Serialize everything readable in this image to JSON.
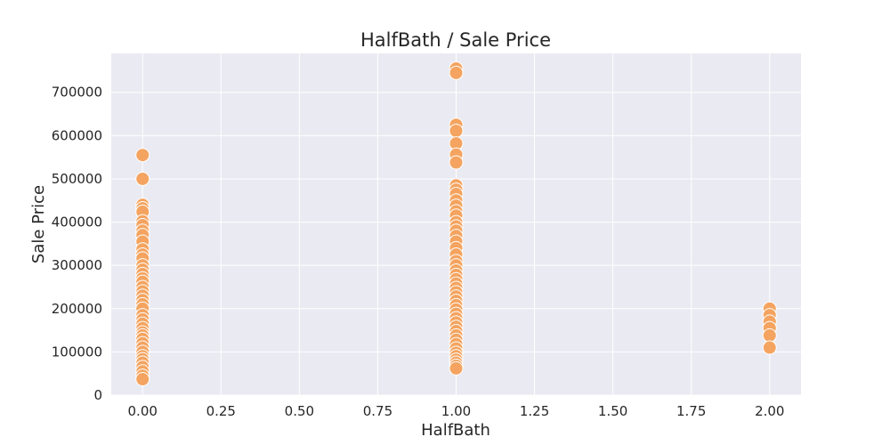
{
  "chart_data": {
    "type": "scatter",
    "title": "HalfBath / Sale Price",
    "xlabel": "HalfBath",
    "ylabel": "Sale Price",
    "xlim": [
      -0.1,
      2.1
    ],
    "ylim": [
      0,
      790000
    ],
    "xticks": [
      0.0,
      0.25,
      0.5,
      0.75,
      1.0,
      1.25,
      1.5,
      1.75,
      2.0
    ],
    "xtick_labels": [
      "0.00",
      "0.25",
      "0.50",
      "0.75",
      "1.00",
      "1.25",
      "1.50",
      "1.75",
      "2.00"
    ],
    "yticks": [
      0,
      100000,
      200000,
      300000,
      400000,
      500000,
      600000,
      700000
    ],
    "ytick_labels": [
      "0",
      "100000",
      "200000",
      "300000",
      "400000",
      "500000",
      "600000",
      "700000"
    ],
    "grid": true,
    "background": "#eaeaf2",
    "grid_color": "#ffffff",
    "marker_color": "#f4a460",
    "marker_edge_color": "#ffffff",
    "points": [
      {
        "x": 0,
        "y": 555000
      },
      {
        "x": 0,
        "y": 500000
      },
      {
        "x": 0,
        "y": 440000
      },
      {
        "x": 0,
        "y": 432000
      },
      {
        "x": 0,
        "y": 424000
      },
      {
        "x": 0,
        "y": 402000
      },
      {
        "x": 0,
        "y": 393000
      },
      {
        "x": 0,
        "y": 380000
      },
      {
        "x": 0,
        "y": 370000
      },
      {
        "x": 0,
        "y": 355000
      },
      {
        "x": 0,
        "y": 337000
      },
      {
        "x": 0,
        "y": 325000
      },
      {
        "x": 0,
        "y": 316000
      },
      {
        "x": 0,
        "y": 300000
      },
      {
        "x": 0,
        "y": 290000
      },
      {
        "x": 0,
        "y": 280000
      },
      {
        "x": 0,
        "y": 270000
      },
      {
        "x": 0,
        "y": 262000
      },
      {
        "x": 0,
        "y": 250000
      },
      {
        "x": 0,
        "y": 240000
      },
      {
        "x": 0,
        "y": 230000
      },
      {
        "x": 0,
        "y": 220000
      },
      {
        "x": 0,
        "y": 210000
      },
      {
        "x": 0,
        "y": 200000
      },
      {
        "x": 0,
        "y": 185000
      },
      {
        "x": 0,
        "y": 175000
      },
      {
        "x": 0,
        "y": 165000
      },
      {
        "x": 0,
        "y": 155000
      },
      {
        "x": 0,
        "y": 145000
      },
      {
        "x": 0,
        "y": 138000
      },
      {
        "x": 0,
        "y": 130000
      },
      {
        "x": 0,
        "y": 120000
      },
      {
        "x": 0,
        "y": 110000
      },
      {
        "x": 0,
        "y": 100000
      },
      {
        "x": 0,
        "y": 90000
      },
      {
        "x": 0,
        "y": 83000
      },
      {
        "x": 0,
        "y": 75000
      },
      {
        "x": 0,
        "y": 65000
      },
      {
        "x": 0,
        "y": 55000
      },
      {
        "x": 0,
        "y": 45000
      },
      {
        "x": 0,
        "y": 37000
      },
      {
        "x": 1,
        "y": 755000
      },
      {
        "x": 1,
        "y": 745000
      },
      {
        "x": 1,
        "y": 625000
      },
      {
        "x": 1,
        "y": 611000
      },
      {
        "x": 1,
        "y": 582000
      },
      {
        "x": 1,
        "y": 556000
      },
      {
        "x": 1,
        "y": 538000
      },
      {
        "x": 1,
        "y": 485000
      },
      {
        "x": 1,
        "y": 475000
      },
      {
        "x": 1,
        "y": 465000
      },
      {
        "x": 1,
        "y": 450000
      },
      {
        "x": 1,
        "y": 438000
      },
      {
        "x": 1,
        "y": 425000
      },
      {
        "x": 1,
        "y": 415000
      },
      {
        "x": 1,
        "y": 400000
      },
      {
        "x": 1,
        "y": 390000
      },
      {
        "x": 1,
        "y": 380000
      },
      {
        "x": 1,
        "y": 368000
      },
      {
        "x": 1,
        "y": 355000
      },
      {
        "x": 1,
        "y": 340000
      },
      {
        "x": 1,
        "y": 325000
      },
      {
        "x": 1,
        "y": 310000
      },
      {
        "x": 1,
        "y": 300000
      },
      {
        "x": 1,
        "y": 288000
      },
      {
        "x": 1,
        "y": 278000
      },
      {
        "x": 1,
        "y": 268000
      },
      {
        "x": 1,
        "y": 258000
      },
      {
        "x": 1,
        "y": 248000
      },
      {
        "x": 1,
        "y": 238000
      },
      {
        "x": 1,
        "y": 228000
      },
      {
        "x": 1,
        "y": 218000
      },
      {
        "x": 1,
        "y": 208000
      },
      {
        "x": 1,
        "y": 198000
      },
      {
        "x": 1,
        "y": 188000
      },
      {
        "x": 1,
        "y": 178000
      },
      {
        "x": 1,
        "y": 168000
      },
      {
        "x": 1,
        "y": 158000
      },
      {
        "x": 1,
        "y": 148000
      },
      {
        "x": 1,
        "y": 138000
      },
      {
        "x": 1,
        "y": 128000
      },
      {
        "x": 1,
        "y": 118000
      },
      {
        "x": 1,
        "y": 108000
      },
      {
        "x": 1,
        "y": 98000
      },
      {
        "x": 1,
        "y": 90000
      },
      {
        "x": 1,
        "y": 82000
      },
      {
        "x": 1,
        "y": 75000
      },
      {
        "x": 1,
        "y": 68000
      },
      {
        "x": 1,
        "y": 62000
      },
      {
        "x": 2,
        "y": 200000
      },
      {
        "x": 2,
        "y": 185000
      },
      {
        "x": 2,
        "y": 170000
      },
      {
        "x": 2,
        "y": 155000
      },
      {
        "x": 2,
        "y": 138000
      },
      {
        "x": 2,
        "y": 110000
      }
    ]
  }
}
